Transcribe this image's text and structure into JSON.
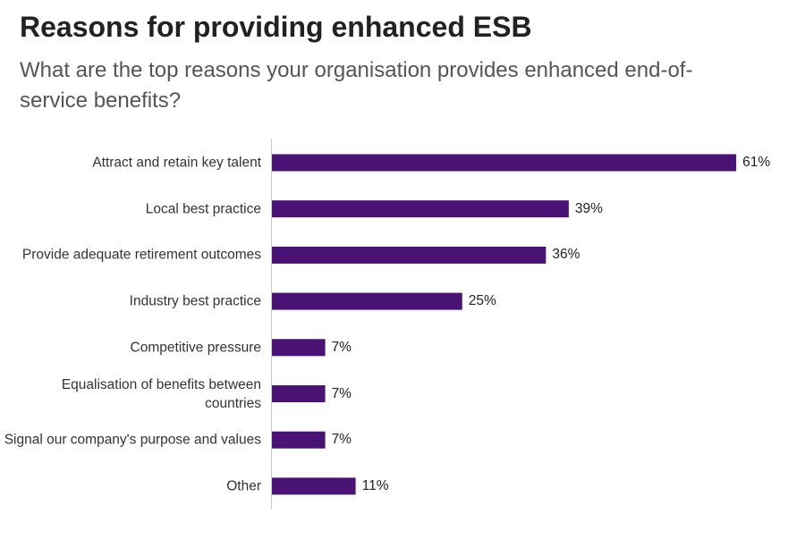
{
  "chart_data": {
    "type": "bar",
    "orientation": "horizontal",
    "title": "Reasons for providing enhanced ESB",
    "subtitle": "What are the top reasons your organisation provides enhanced end-of-service benefits?",
    "categories": [
      "Attract and retain key talent",
      "Local best practice",
      "Provide adequate retirement outcomes",
      "Industry best practice",
      "Competitive pressure",
      "Equalisation of benefits between countries",
      "Signal our company's purpose and values",
      "Other"
    ],
    "values": [
      61,
      39,
      36,
      25,
      7,
      7,
      7,
      11
    ],
    "value_labels": [
      "61%",
      "39%",
      "36%",
      "25%",
      "7%",
      "7%",
      "7%",
      "11%"
    ],
    "color": "#4b1276"
  }
}
